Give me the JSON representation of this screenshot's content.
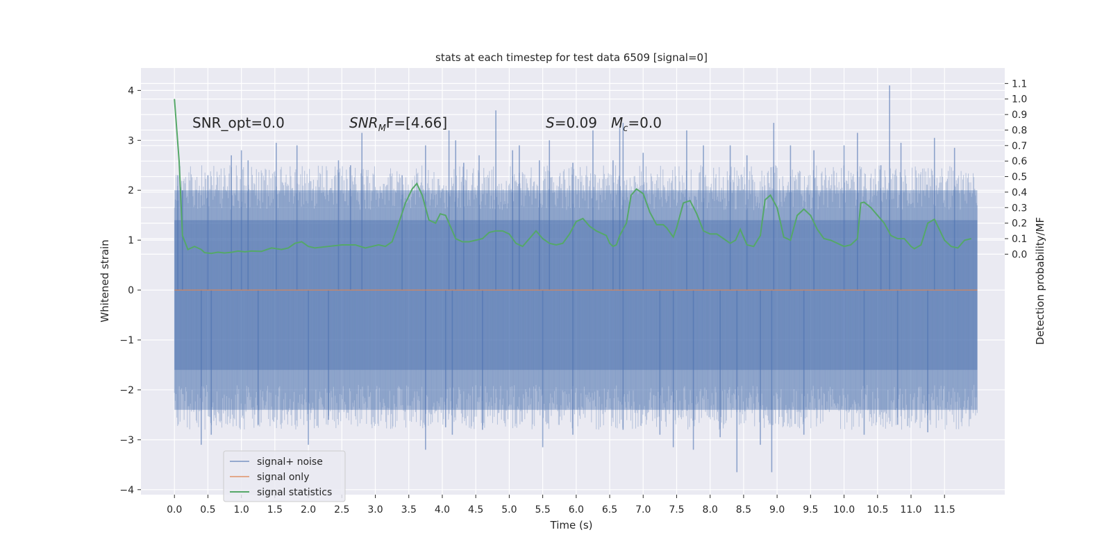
{
  "chart_data": {
    "type": "line",
    "title": "stats at each timestep for test data 6509 [signal=0]",
    "xlabel": "Time (s)",
    "ylabel": "Whitened strain",
    "ylabel_right": "Detection probability/MF",
    "xlim": [
      -0.5,
      12.4
    ],
    "ylim": [
      -4.1,
      4.45
    ],
    "ylim_right": [
      -1.55,
      1.2
    ],
    "x_ticks": [
      0.0,
      0.5,
      1.0,
      1.5,
      2.0,
      2.5,
      3.0,
      3.5,
      4.0,
      4.5,
      5.0,
      5.5,
      6.0,
      6.5,
      7.0,
      7.5,
      8.0,
      8.5,
      9.0,
      9.5,
      10.0,
      10.5,
      11.0,
      11.5
    ],
    "x_tick_labels": [
      "0.0",
      "0.5",
      "1.0",
      "1.5",
      "2.0",
      "2.5",
      "3.0",
      "3.5",
      "4.0",
      "4.5",
      "5.0",
      "5.5",
      "6.0",
      "6.5",
      "7.0",
      "7.5",
      "8.0",
      "8.5",
      "9.0",
      "9.5",
      "10.0",
      "10.5",
      "11.0",
      "11.5"
    ],
    "y_ticks": [
      -4,
      -3,
      -2,
      -1,
      0,
      1,
      2,
      3,
      4
    ],
    "y_tick_labels": [
      "−4",
      "−3",
      "−2",
      "−1",
      "0",
      "1",
      "2",
      "3",
      "4"
    ],
    "y_right_ticks": [
      0.0,
      0.1,
      0.2,
      0.3,
      0.4,
      0.5,
      0.6,
      0.7,
      0.8,
      0.9,
      1.0,
      1.1
    ],
    "y_right_tick_labels": [
      "0.0",
      "0.1",
      "0.2",
      "0.3",
      "0.4",
      "0.5",
      "0.6",
      "0.7",
      "0.8",
      "0.9",
      "1.0",
      "1.1"
    ],
    "grid": true,
    "legend_position": "lower-left",
    "annotations": {
      "snr_opt": "SNR_opt=0.0",
      "snr_mf_base": "SNR",
      "snr_mf_sub": "M",
      "snr_mf_rest": "F=[4.66]",
      "s_label": "S",
      "s_value": "=0.09",
      "mc_label": "M",
      "mc_sub": "c",
      "mc_value": "=0.0"
    },
    "colors": {
      "background": "#eaeaf2",
      "grid": "#ffffff",
      "noise": "#4c72b0",
      "signal": "#dd8452",
      "stats": "#55a868"
    },
    "series": [
      {
        "name": "signal+ noise",
        "axis": "left",
        "description_bands": {
          "t_start": 0.0,
          "t_end": 11.99,
          "core_band": [
            -1.6,
            1.4
          ],
          "envelope": [
            -2.4,
            2.0
          ]
        },
        "spikes": [
          {
            "x": 0.05,
            "y": 2.3
          },
          {
            "x": 0.12,
            "y": 2.0
          },
          {
            "x": 0.5,
            "y": 2.3
          },
          {
            "x": 0.85,
            "y": 2.7
          },
          {
            "x": 1.0,
            "y": 2.8
          },
          {
            "x": 1.1,
            "y": 2.6
          },
          {
            "x": 1.52,
            "y": 2.95
          },
          {
            "x": 1.83,
            "y": 2.9
          },
          {
            "x": 2.45,
            "y": 2.6
          },
          {
            "x": 2.63,
            "y": 2.5
          },
          {
            "x": 2.8,
            "y": 3.15
          },
          {
            "x": 3.4,
            "y": 2.3
          },
          {
            "x": 3.75,
            "y": 2.9
          },
          {
            "x": 4.1,
            "y": 3.2
          },
          {
            "x": 4.2,
            "y": 3.0
          },
          {
            "x": 4.32,
            "y": 2.55
          },
          {
            "x": 4.55,
            "y": 2.7
          },
          {
            "x": 4.8,
            "y": 3.6
          },
          {
            "x": 5.05,
            "y": 2.8
          },
          {
            "x": 5.15,
            "y": 2.9
          },
          {
            "x": 5.45,
            "y": 2.6
          },
          {
            "x": 5.6,
            "y": 3.0
          },
          {
            "x": 5.95,
            "y": 2.55
          },
          {
            "x": 6.25,
            "y": 3.2
          },
          {
            "x": 6.55,
            "y": 2.6
          },
          {
            "x": 6.65,
            "y": 3.25
          },
          {
            "x": 6.7,
            "y": 3.35
          },
          {
            "x": 7.0,
            "y": 2.75
          },
          {
            "x": 7.65,
            "y": 3.2
          },
          {
            "x": 7.9,
            "y": 2.9
          },
          {
            "x": 8.3,
            "y": 2.9
          },
          {
            "x": 8.55,
            "y": 2.7
          },
          {
            "x": 8.95,
            "y": 3.35
          },
          {
            "x": 9.2,
            "y": 2.9
          },
          {
            "x": 9.55,
            "y": 2.8
          },
          {
            "x": 10.0,
            "y": 2.9
          },
          {
            "x": 10.2,
            "y": 3.15
          },
          {
            "x": 10.55,
            "y": 2.5
          },
          {
            "x": 10.68,
            "y": 4.1
          },
          {
            "x": 10.85,
            "y": 2.95
          },
          {
            "x": 11.35,
            "y": 3.05
          },
          {
            "x": 11.65,
            "y": 2.85
          },
          {
            "x": 0.4,
            "y": -3.1
          },
          {
            "x": 0.55,
            "y": -2.9
          },
          {
            "x": 1.25,
            "y": -2.7
          },
          {
            "x": 2.0,
            "y": -3.1
          },
          {
            "x": 2.3,
            "y": -2.6
          },
          {
            "x": 3.75,
            "y": -3.2
          },
          {
            "x": 4.05,
            "y": -2.75
          },
          {
            "x": 4.15,
            "y": -2.9
          },
          {
            "x": 4.6,
            "y": -2.8
          },
          {
            "x": 5.5,
            "y": -3.15
          },
          {
            "x": 5.95,
            "y": -2.9
          },
          {
            "x": 6.7,
            "y": -2.8
          },
          {
            "x": 7.25,
            "y": -2.9
          },
          {
            "x": 7.45,
            "y": -3.15
          },
          {
            "x": 7.75,
            "y": -3.2
          },
          {
            "x": 8.15,
            "y": -2.95
          },
          {
            "x": 8.4,
            "y": -3.65
          },
          {
            "x": 8.75,
            "y": -3.1
          },
          {
            "x": 8.92,
            "y": -3.65
          },
          {
            "x": 9.4,
            "y": -2.9
          },
          {
            "x": 10.3,
            "y": -2.9
          },
          {
            "x": 10.8,
            "y": -2.7
          },
          {
            "x": 11.25,
            "y": -2.85
          }
        ]
      },
      {
        "name": "signal only",
        "axis": "left",
        "x": [
          0.0,
          11.99
        ],
        "y": [
          0.0,
          0.0
        ]
      },
      {
        "name": "signal statistics",
        "axis": "right",
        "x": [
          0.0,
          0.07,
          0.12,
          0.2,
          0.3,
          0.4,
          0.45,
          0.55,
          0.65,
          0.75,
          0.85,
          0.95,
          1.05,
          1.15,
          1.3,
          1.45,
          1.6,
          1.7,
          1.8,
          1.9,
          2.0,
          2.1,
          2.3,
          2.5,
          2.7,
          2.85,
          2.95,
          3.05,
          3.15,
          3.25,
          3.35,
          3.45,
          3.55,
          3.62,
          3.7,
          3.8,
          3.9,
          3.97,
          4.05,
          4.1,
          4.2,
          4.3,
          4.4,
          4.5,
          4.6,
          4.7,
          4.8,
          4.9,
          5.0,
          5.1,
          5.2,
          5.3,
          5.4,
          5.5,
          5.6,
          5.7,
          5.8,
          5.9,
          6.0,
          6.1,
          6.2,
          6.3,
          6.45,
          6.5,
          6.55,
          6.6,
          6.65,
          6.75,
          6.82,
          6.9,
          7.0,
          7.1,
          7.2,
          7.25,
          7.3,
          7.35,
          7.45,
          7.5,
          7.6,
          7.7,
          7.8,
          7.9,
          8.0,
          8.1,
          8.2,
          8.3,
          8.38,
          8.45,
          8.55,
          8.65,
          8.75,
          8.82,
          8.9,
          9.0,
          9.1,
          9.2,
          9.3,
          9.4,
          9.5,
          9.6,
          9.7,
          9.8,
          9.9,
          10.0,
          10.1,
          10.2,
          10.25,
          10.3,
          10.4,
          10.5,
          10.6,
          10.7,
          10.8,
          10.9,
          11.0,
          11.05,
          11.15,
          11.25,
          11.35,
          11.5,
          11.6,
          11.7,
          11.8,
          11.9
        ],
        "y": [
          1.0,
          0.6,
          0.12,
          0.03,
          0.05,
          0.03,
          0.01,
          0.005,
          0.013,
          0.008,
          0.012,
          0.02,
          0.015,
          0.02,
          0.018,
          0.04,
          0.03,
          0.04,
          0.07,
          0.08,
          0.05,
          0.04,
          0.05,
          0.06,
          0.06,
          0.04,
          0.05,
          0.06,
          0.05,
          0.08,
          0.2,
          0.33,
          0.42,
          0.455,
          0.38,
          0.22,
          0.2,
          0.26,
          0.25,
          0.2,
          0.1,
          0.08,
          0.08,
          0.09,
          0.1,
          0.14,
          0.15,
          0.15,
          0.13,
          0.07,
          0.05,
          0.1,
          0.15,
          0.1,
          0.07,
          0.06,
          0.07,
          0.13,
          0.21,
          0.23,
          0.18,
          0.15,
          0.12,
          0.07,
          0.05,
          0.06,
          0.12,
          0.2,
          0.38,
          0.42,
          0.39,
          0.27,
          0.19,
          0.19,
          0.19,
          0.17,
          0.11,
          0.17,
          0.33,
          0.345,
          0.26,
          0.15,
          0.13,
          0.13,
          0.1,
          0.07,
          0.09,
          0.16,
          0.06,
          0.05,
          0.12,
          0.35,
          0.38,
          0.3,
          0.11,
          0.09,
          0.25,
          0.29,
          0.25,
          0.16,
          0.1,
          0.09,
          0.07,
          0.05,
          0.06,
          0.1,
          0.33,
          0.335,
          0.3,
          0.25,
          0.2,
          0.12,
          0.1,
          0.1,
          0.05,
          0.035,
          0.06,
          0.2,
          0.225,
          0.09,
          0.05,
          0.04,
          0.09,
          0.1
        ]
      }
    ]
  }
}
